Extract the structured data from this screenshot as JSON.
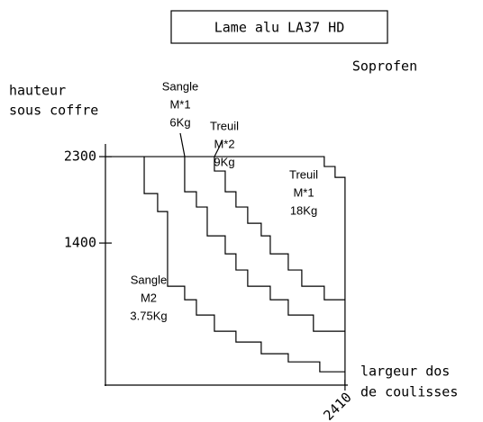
{
  "chart_data": {
    "type": "line",
    "title": "Lame alu LA37 HD",
    "subtitle": "Soprofen",
    "y_label": [
      "hauteur",
      "sous coffre"
    ],
    "x_label": [
      "largeur dos",
      "de coulisses"
    ],
    "xlim": [
      0,
      2420
    ],
    "ylim": [
      -80,
      2460
    ],
    "xticks": [
      2410
    ],
    "yticks": [
      2300,
      1400
    ],
    "color": "#000000",
    "series": [
      {
        "name": [
          "Sangle",
          "M2",
          "3.75Kg"
        ],
        "x": [
          390,
          390,
          525,
          525,
          625,
          625,
          797,
          797,
          915,
          915,
          1096,
          1096,
          1313,
          1313,
          1567,
          1567,
          1839,
          1839,
          2156,
          2156,
          2410
        ],
        "values": [
          2300,
          1915,
          1915,
          1728,
          1728,
          950,
          950,
          809,
          809,
          650,
          650,
          481,
          481,
          369,
          369,
          247,
          247,
          162,
          162,
          59,
          59
        ]
      },
      {
        "name": [
          "Sangle",
          "M*1",
          "6Kg"
        ],
        "x": [
          797,
          797,
          915,
          915,
          1024,
          1024,
          1205,
          1205,
          1313,
          1313,
          1431,
          1431,
          1658,
          1658,
          1839,
          1839,
          2092,
          2092,
          2410
        ],
        "values": [
          2300,
          1934,
          1934,
          1775,
          1775,
          1475,
          1475,
          1287,
          1287,
          1119,
          1119,
          950,
          950,
          809,
          809,
          650,
          650,
          481,
          481
        ]
      },
      {
        "name": [
          "Treuil",
          "M*2",
          "9Kg"
        ],
        "x": [
          1096,
          1096,
          1205,
          1205,
          1313,
          1313,
          1431,
          1431,
          1567,
          1567,
          1658,
          1658,
          1839,
          1839,
          1975,
          1975,
          2201,
          2201,
          2410
        ],
        "values": [
          2300,
          2150,
          2150,
          1934,
          1934,
          1775,
          1775,
          1606,
          1606,
          1475,
          1475,
          1287,
          1287,
          1119,
          1119,
          950,
          950,
          809,
          809
        ]
      },
      {
        "name": [
          "Treuil",
          "M*1",
          "18Kg"
        ],
        "x": [
          0,
          2201,
          2201,
          2310,
          2310,
          2410,
          2410
        ],
        "values": [
          2300,
          2300,
          2197,
          2197,
          2084,
          2084,
          -80
        ]
      }
    ]
  }
}
